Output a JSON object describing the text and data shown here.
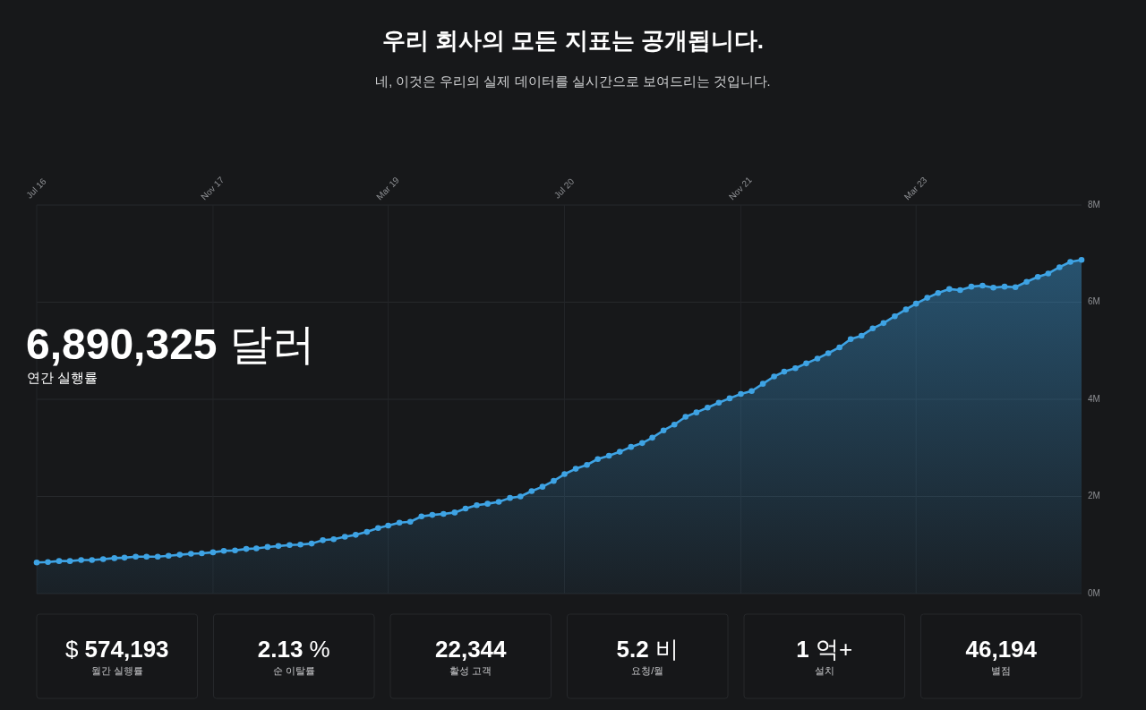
{
  "chart_data": [
    {
      "type": "area",
      "title": "우리 회사의 모든 지표는 공개됩니다.",
      "subtitle": "네, 이것은 우리의 실제 데이터를 실시간으로 보여드리는 것입니다.",
      "annotations": [
        "6,890,325 달러",
        "연간 실행률"
      ],
      "x": [
        "2016-07",
        "2016-08",
        "2016-09",
        "2016-10",
        "2016-11",
        "2016-12",
        "2017-01",
        "2017-02",
        "2017-03",
        "2017-04",
        "2017-05",
        "2017-06",
        "2017-07",
        "2017-08",
        "2017-09",
        "2017-10",
        "2017-11",
        "2017-12",
        "2018-01",
        "2018-02",
        "2018-03",
        "2018-04",
        "2018-05",
        "2018-06",
        "2018-07",
        "2018-08",
        "2018-09",
        "2018-10",
        "2018-11",
        "2018-12",
        "2019-01",
        "2019-02",
        "2019-03",
        "2019-04",
        "2019-05",
        "2019-06",
        "2019-07",
        "2019-08",
        "2019-09",
        "2019-10",
        "2019-11",
        "2019-12",
        "2020-01",
        "2020-02",
        "2020-03",
        "2020-04",
        "2020-05",
        "2020-06",
        "2020-07",
        "2020-08",
        "2020-09",
        "2020-10",
        "2020-11",
        "2020-12",
        "2021-01",
        "2021-02",
        "2021-03",
        "2021-04",
        "2021-05",
        "2021-06",
        "2021-07",
        "2021-08",
        "2021-09",
        "2021-10",
        "2021-11",
        "2021-12",
        "2022-01",
        "2022-02",
        "2022-03",
        "2022-04",
        "2022-05",
        "2022-06",
        "2022-07",
        "2022-08",
        "2022-09",
        "2022-10",
        "2022-11",
        "2022-12",
        "2023-01",
        "2023-02",
        "2023-03",
        "2023-04",
        "2023-05",
        "2023-06",
        "2023-07",
        "2023-08",
        "2023-09",
        "2023-10",
        "2023-11",
        "2023-12",
        "2024-01",
        "2024-02",
        "2024-03",
        "2024-04",
        "2024-05",
        "2024-06"
      ],
      "values": [
        0.64,
        0.65,
        0.67,
        0.67,
        0.69,
        0.69,
        0.71,
        0.73,
        0.74,
        0.76,
        0.76,
        0.76,
        0.78,
        0.8,
        0.82,
        0.83,
        0.85,
        0.88,
        0.89,
        0.92,
        0.93,
        0.96,
        0.98,
        1.0,
        1.01,
        1.03,
        1.1,
        1.12,
        1.17,
        1.21,
        1.27,
        1.35,
        1.4,
        1.46,
        1.48,
        1.59,
        1.62,
        1.64,
        1.67,
        1.75,
        1.82,
        1.85,
        1.89,
        1.97,
        2.0,
        2.11,
        2.2,
        2.32,
        2.46,
        2.57,
        2.65,
        2.77,
        2.84,
        2.92,
        3.02,
        3.1,
        3.21,
        3.36,
        3.48,
        3.64,
        3.73,
        3.83,
        3.93,
        4.02,
        4.11,
        4.17,
        4.32,
        4.47,
        4.57,
        4.64,
        4.74,
        4.84,
        4.95,
        5.07,
        5.24,
        5.31,
        5.46,
        5.57,
        5.71,
        5.85,
        5.97,
        6.09,
        6.19,
        6.27,
        6.25,
        6.32,
        6.34,
        6.3,
        6.32,
        6.31,
        6.42,
        6.52,
        6.59,
        6.72,
        6.83,
        6.87
      ],
      "color": "#3ea3e4",
      "xlim": [
        "2016-07",
        "2024-06"
      ],
      "xticks": [
        {
          "value": "2016-07",
          "label": "Jul 16"
        },
        {
          "value": "2017-11",
          "label": "Nov 17"
        },
        {
          "value": "2019-03",
          "label": "Mar 19"
        },
        {
          "value": "2020-07",
          "label": "Jul 20"
        },
        {
          "value": "2021-11",
          "label": "Nov 21"
        },
        {
          "value": "2023-03",
          "label": "Mar 23"
        }
      ],
      "ylim": [
        0,
        8
      ],
      "yticks": [
        {
          "value": 0,
          "label": "0M"
        },
        {
          "value": 2,
          "label": "2M"
        },
        {
          "value": 4,
          "label": "4M"
        },
        {
          "value": 6,
          "label": "6M"
        },
        {
          "value": 8,
          "label": "8M"
        }
      ],
      "grid": true,
      "marker": "circle"
    },
    {
      "type": "other",
      "annotations": [
        "$ 574,193",
        "월간 실행률",
        "2.13 %",
        "순 이탈률",
        "22,344",
        "활성 고객",
        "5.2 비",
        "요청/월",
        "1 억+",
        "설치",
        "46,194",
        "별점"
      ]
    }
  ]
}
